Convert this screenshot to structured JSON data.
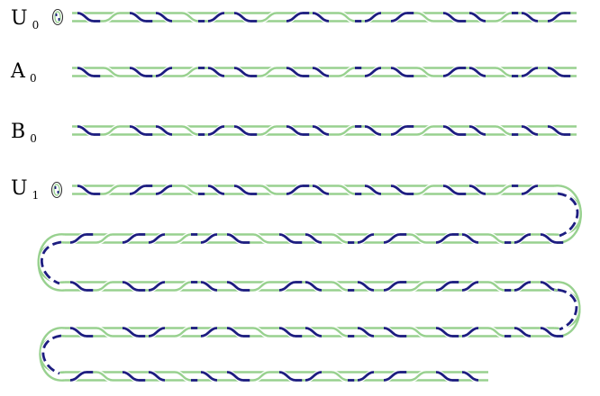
{
  "colors": {
    "strand_a": "#98d18f",
    "strand_b": "#1d1d80",
    "label": "#000000",
    "background": "#ffffff"
  },
  "rows": [
    {
      "letter": "U",
      "sub": "0",
      "has_marker": true
    },
    {
      "letter": "A",
      "sub": "0",
      "has_marker": false
    },
    {
      "letter": "B",
      "sub": "0",
      "has_marker": false
    },
    {
      "letter": "U",
      "sub": "1",
      "has_marker": true
    }
  ],
  "icons": {
    "marker": "oval-loop-marker-icon"
  }
}
